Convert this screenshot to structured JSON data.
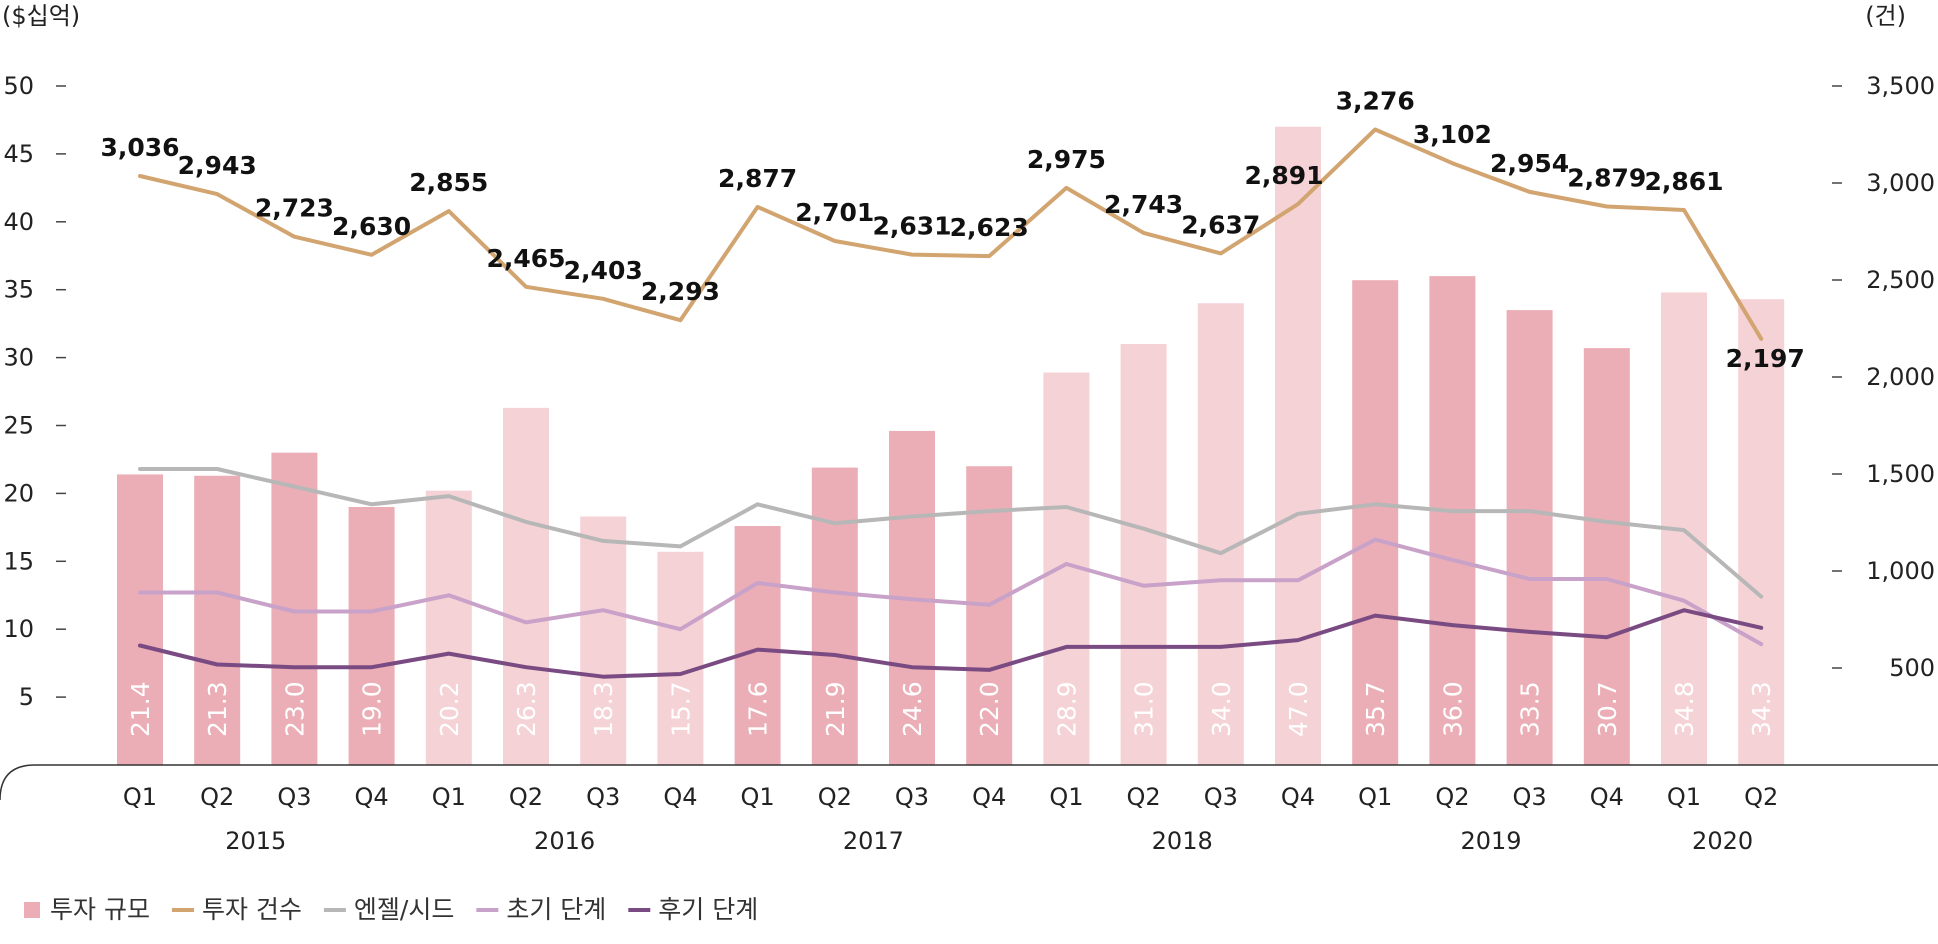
{
  "chart_data": {
    "type": "bar",
    "left_unit": "($십억)",
    "right_unit": "(건)",
    "left_ticks": [
      5,
      10,
      15,
      20,
      25,
      30,
      35,
      40,
      45,
      50
    ],
    "right_ticks": [
      "500",
      "1,000",
      "1,500",
      "2,000",
      "2,500",
      "3,000",
      "3,500"
    ],
    "ylim_left": [
      0,
      50
    ],
    "ylim_right": [
      0,
      3500
    ],
    "categories": [
      "Q1",
      "Q2",
      "Q3",
      "Q4",
      "Q1",
      "Q2",
      "Q3",
      "Q4",
      "Q1",
      "Q2",
      "Q3",
      "Q4",
      "Q1",
      "Q2",
      "Q3",
      "Q4",
      "Q1",
      "Q2",
      "Q3",
      "Q4",
      "Q1",
      "Q2"
    ],
    "years": [
      {
        "label": "2015",
        "from": 0,
        "to": 3
      },
      {
        "label": "2016",
        "from": 4,
        "to": 7
      },
      {
        "label": "2017",
        "from": 8,
        "to": 11
      },
      {
        "label": "2018",
        "from": 12,
        "to": 15
      },
      {
        "label": "2019",
        "from": 16,
        "to": 19
      },
      {
        "label": "2020",
        "from": 20,
        "to": 21
      }
    ],
    "series": [
      {
        "name": "투자 규모",
        "kind": "bar",
        "axis": "left",
        "values": [
          21.4,
          21.3,
          23.0,
          19.0,
          20.2,
          26.3,
          18.3,
          15.7,
          17.6,
          21.9,
          24.6,
          22.0,
          28.9,
          31.0,
          34.0,
          47.0,
          35.7,
          36.0,
          33.5,
          30.7,
          34.8,
          34.3
        ],
        "labels": [
          "21.4",
          "21.3",
          "23.0",
          "19.0",
          "20.2",
          "26.3",
          "18.3",
          "15.7",
          "17.6",
          "21.9",
          "24.6",
          "22.0",
          "28.9",
          "31.0",
          "34.0",
          "47.0",
          "35.7",
          "36.0",
          "33.5",
          "30.7",
          "34.8",
          "34.3"
        ],
        "shades": [
          "dark",
          "dark",
          "dark",
          "dark",
          "light",
          "light",
          "light",
          "light",
          "dark",
          "dark",
          "dark",
          "dark",
          "light",
          "light",
          "light",
          "light",
          "dark",
          "dark",
          "dark",
          "dark",
          "light",
          "light"
        ],
        "color": "#ebaeb6",
        "light_color": "#f5d2d6"
      },
      {
        "name": "투자 건수",
        "kind": "line",
        "axis": "right",
        "values": [
          3036,
          2943,
          2723,
          2630,
          2855,
          2465,
          2403,
          2293,
          2877,
          2701,
          2631,
          2623,
          2975,
          2743,
          2637,
          2891,
          3276,
          3102,
          2954,
          2879,
          2861,
          2197
        ],
        "labels": [
          "3,036",
          "2,943",
          "2,723",
          "2,630",
          "2,855",
          "2,465",
          "2,403",
          "2,293",
          "2,877",
          "2,701",
          "2,631",
          "2,623",
          "2,975",
          "2,743",
          "2,637",
          "2,891",
          "3,276",
          "3,102",
          "2,954",
          "2,879",
          "2,861",
          "2,197"
        ],
        "color": "#d2a46f"
      },
      {
        "name": "엔젤/시드",
        "kind": "line",
        "axis": "left",
        "values": [
          21.8,
          21.8,
          20.5,
          19.2,
          19.8,
          17.9,
          16.5,
          16.1,
          19.2,
          17.8,
          18.3,
          18.7,
          19.0,
          17.4,
          15.6,
          18.5,
          19.2,
          18.7,
          18.7,
          17.9,
          17.3,
          12.4
        ],
        "color": "#b7b7b7"
      },
      {
        "name": "초기 단계",
        "kind": "line",
        "axis": "left",
        "values": [
          12.7,
          12.7,
          11.3,
          11.3,
          12.5,
          10.5,
          11.4,
          10.0,
          13.4,
          12.7,
          12.2,
          11.8,
          14.8,
          13.2,
          13.6,
          13.6,
          16.6,
          15.1,
          13.7,
          13.7,
          12.1,
          8.9
        ],
        "color": "#c8a2c8"
      },
      {
        "name": "후기 단계",
        "kind": "line",
        "axis": "left",
        "values": [
          8.8,
          7.4,
          7.2,
          7.2,
          8.2,
          7.2,
          6.5,
          6.7,
          8.5,
          8.1,
          7.2,
          7.0,
          8.7,
          8.7,
          8.7,
          9.2,
          11.0,
          10.3,
          9.8,
          9.4,
          11.4,
          10.1
        ],
        "color": "#7a4b82"
      }
    ],
    "legend_position": "bottom-left",
    "grid": false
  }
}
